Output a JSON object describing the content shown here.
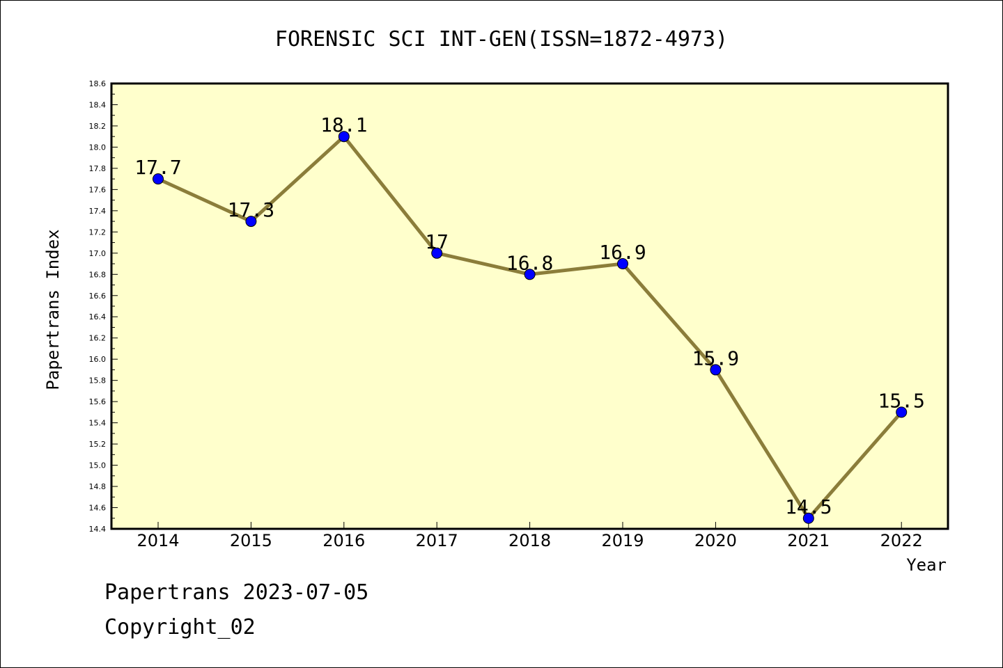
{
  "chart_data": {
    "type": "line",
    "title": "FORENSIC SCI INT-GEN(ISSN=1872-4973)",
    "xlabel": "Year",
    "ylabel": "Papertrans Index",
    "categories": [
      "2014",
      "2015",
      "2016",
      "2017",
      "2018",
      "2019",
      "2020",
      "2021",
      "2022"
    ],
    "series": [
      {
        "values": [
          17.7,
          17.3,
          18.1,
          17.0,
          16.8,
          16.9,
          15.9,
          14.5,
          15.5
        ],
        "labels": [
          "17.7",
          "17.3",
          "18.1",
          "17",
          "16.8",
          "16.9",
          "15.9",
          "14.5",
          "15.5"
        ]
      }
    ],
    "ylim": [
      14.4,
      18.6
    ],
    "ytick_step": 0.2,
    "ytick_labels": [
      "14.4",
      "14.6",
      "14.8",
      "15.0",
      "15.2",
      "15.4",
      "15.6",
      "15.8",
      "16.0",
      "16.2",
      "16.4",
      "16.6",
      "16.8",
      "17.0",
      "17.2",
      "17.4",
      "17.6",
      "17.8",
      "18.0",
      "18.2",
      "18.4",
      "18.6"
    ],
    "grid": false,
    "legend": "none",
    "colors": {
      "plot_background": "#ffffcc",
      "line": "#8b7d3a",
      "marker": "#0000ff"
    }
  },
  "footer": {
    "line1": "Papertrans 2023-07-05",
    "line2": "Copyright_02"
  }
}
